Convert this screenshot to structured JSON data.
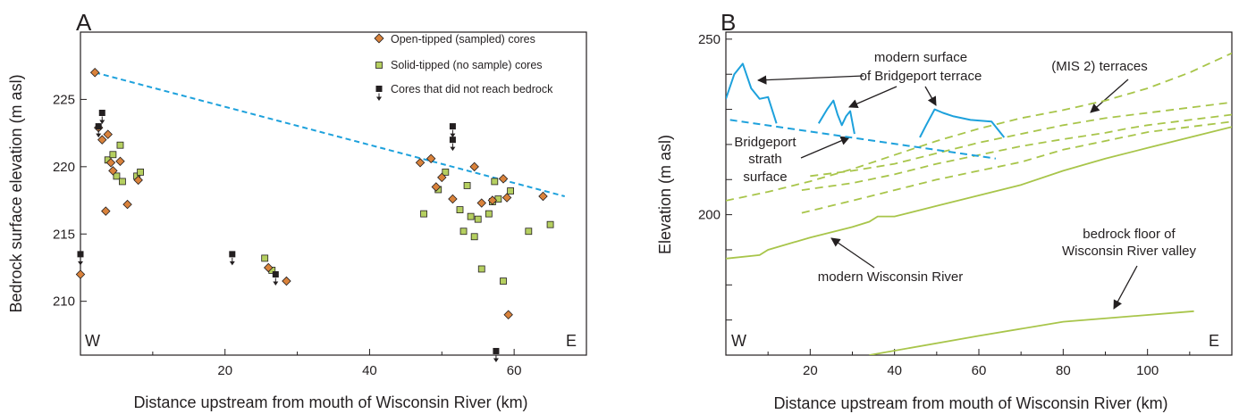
{
  "colors": {
    "open_tipped": "#d9823b",
    "solid_tipped": "#b5cf60",
    "no_bedrock": "#231f20",
    "trend_line": "#1da1dc",
    "terrace": "#a8c54a",
    "axis": "#231f20"
  },
  "chart_data": [
    {
      "panel": "A",
      "type": "scatter",
      "xlabel": "Distance upstream from mouth of Wisconsin River (km)",
      "ylabel": "Bedrock surface elevation (m asl)",
      "xlim": [
        0,
        70
      ],
      "ylim": [
        206,
        230
      ],
      "xticks": [
        20,
        40,
        60
      ],
      "yticks": [
        210,
        215,
        220,
        225
      ],
      "corner_labels": [
        "W",
        "E"
      ],
      "legend_position": "top-right",
      "trend_line": {
        "x": [
          2,
          67
        ],
        "y": [
          227,
          217.8
        ]
      },
      "series": [
        {
          "name": "Open-tipped (sampled) cores",
          "marker": "diamond",
          "points": [
            [
              0,
              212
            ],
            [
              2,
              227
            ],
            [
              2.5,
              222.9
            ],
            [
              3,
              222
            ],
            [
              3.5,
              216.7
            ],
            [
              3.8,
              222.4
            ],
            [
              4.2,
              220.3
            ],
            [
              4.5,
              219.7
            ],
            [
              5.5,
              220.4
            ],
            [
              6.5,
              217.2
            ],
            [
              8,
              219
            ],
            [
              26,
              212.5
            ],
            [
              28.5,
              211.5
            ],
            [
              47,
              220.3
            ],
            [
              48.5,
              220.6
            ],
            [
              49.2,
              218.5
            ],
            [
              50,
              219.2
            ],
            [
              51.5,
              217.6
            ],
            [
              54.5,
              220
            ],
            [
              55.5,
              217.3
            ],
            [
              57,
              217.5
            ],
            [
              58.5,
              219.1
            ],
            [
              59,
              217.7
            ],
            [
              59.2,
              209
            ],
            [
              64,
              217.8
            ]
          ]
        },
        {
          "name": "Solid-tipped (no sample) cores",
          "marker": "square",
          "points": [
            [
              3.8,
              220.5
            ],
            [
              4.5,
              220.9
            ],
            [
              5,
              219.3
            ],
            [
              5.5,
              221.6
            ],
            [
              5.8,
              218.9
            ],
            [
              7.8,
              219.3
            ],
            [
              8.3,
              219.6
            ],
            [
              25.5,
              213.2
            ],
            [
              26.5,
              212.3
            ],
            [
              47.5,
              216.5
            ],
            [
              49.5,
              218.3
            ],
            [
              50.5,
              219.6
            ],
            [
              52.5,
              216.8
            ],
            [
              53,
              215.2
            ],
            [
              53.5,
              218.6
            ],
            [
              54,
              216.3
            ],
            [
              54.5,
              214.8
            ],
            [
              55,
              216.1
            ],
            [
              55.5,
              212.4
            ],
            [
              56.5,
              216.5
            ],
            [
              57,
              217.4
            ],
            [
              57.3,
              218.9
            ],
            [
              57.8,
              217.6
            ],
            [
              58.5,
              211.5
            ],
            [
              59.5,
              218.2
            ],
            [
              62,
              215.2
            ],
            [
              65,
              215.7
            ]
          ]
        },
        {
          "name": "Cores that did not reach bedrock",
          "marker": "square-arrow",
          "points": [
            [
              0,
              213.5
            ],
            [
              2.5,
              223
            ],
            [
              3,
              224
            ],
            [
              21,
              213.5
            ],
            [
              27,
              212
            ],
            [
              51.5,
              223
            ],
            [
              51.5,
              222
            ],
            [
              57.5,
              206.3
            ]
          ]
        }
      ]
    },
    {
      "panel": "B",
      "type": "line",
      "xlabel": "Distance upstream from mouth of Wisconsin River (km)",
      "ylabel": "Elevation (m asl)",
      "xlim": [
        0,
        120
      ],
      "ylim": [
        160,
        252
      ],
      "xticks": [
        20,
        40,
        60,
        80,
        100
      ],
      "yticks_labeled": [
        200,
        250
      ],
      "yticks_minor": [
        170,
        180,
        190,
        210,
        220,
        230,
        240
      ],
      "corner_labels": [
        "W",
        "E"
      ],
      "series": [
        {
          "role": "modern Wisconsin River",
          "style": "solid",
          "x": [
            0,
            8,
            10,
            20,
            30,
            34,
            36,
            38,
            40,
            50,
            60,
            70,
            80,
            90,
            100,
            110,
            120
          ],
          "y": [
            187.5,
            188.5,
            190,
            193.5,
            196.5,
            198,
            199.5,
            199.5,
            199.5,
            202.5,
            205.5,
            208.5,
            212.5,
            216,
            219,
            222,
            225
          ]
        },
        {
          "role": "bedrock floor of Wisconsin River valley",
          "style": "solid",
          "x": [
            34,
            60,
            80,
            111
          ],
          "y": [
            160,
            165.5,
            169.5,
            172.5
          ]
        },
        {
          "role": "terrace",
          "style": "dashed",
          "x": [
            0,
            10,
            20,
            30,
            40,
            50,
            60,
            70,
            80,
            90,
            100,
            110,
            120
          ],
          "y": [
            204,
            206.5,
            209.5,
            213,
            217,
            221,
            224.5,
            227.5,
            229.8,
            232.5,
            236,
            240.5,
            246
          ]
        },
        {
          "role": "terrace",
          "style": "dashed",
          "x": [
            20,
            30,
            40,
            50,
            60,
            70,
            80,
            90,
            100,
            110,
            120
          ],
          "y": [
            211,
            212.5,
            214.5,
            217.5,
            220.5,
            223,
            225.5,
            227.5,
            229,
            230.5,
            232
          ]
        },
        {
          "role": "terrace",
          "style": "dashed",
          "x": [
            18,
            30,
            40,
            50,
            60,
            70,
            80,
            90,
            95,
            100,
            110,
            120
          ],
          "y": [
            207,
            209,
            211.5,
            214.5,
            217,
            219.5,
            221.5,
            223.3,
            224.5,
            225.5,
            227,
            228.5
          ]
        },
        {
          "role": "terrace",
          "style": "dashed",
          "x": [
            18,
            30,
            40,
            50,
            60,
            70,
            80,
            90,
            100,
            110,
            120
          ],
          "y": [
            200.5,
            204,
            207,
            210,
            212.5,
            215,
            218.5,
            221,
            223.5,
            225,
            226.5
          ]
        },
        {
          "role": "Bridgeport strath surface",
          "style": "dashed",
          "x": [
            1,
            64
          ],
          "y": [
            227,
            216
          ]
        }
      ],
      "terrace_profiles": [
        [
          [
            0,
            233
          ],
          [
            2,
            240
          ],
          [
            4,
            243
          ],
          [
            6,
            236
          ],
          [
            8,
            233
          ],
          [
            10,
            233.5
          ],
          [
            12,
            226
          ]
        ],
        [
          [
            22,
            226
          ],
          [
            24,
            230
          ],
          [
            25.5,
            232.5
          ],
          [
            26.5,
            228.5
          ],
          [
            27.5,
            225.5
          ],
          [
            28.5,
            228
          ],
          [
            29.5,
            229.5
          ],
          [
            30.5,
            223
          ]
        ],
        [
          [
            46,
            222
          ],
          [
            47.5,
            225.5
          ],
          [
            49.5,
            230
          ],
          [
            51.5,
            229
          ],
          [
            54,
            228
          ],
          [
            58,
            227
          ],
          [
            63,
            226.5
          ],
          [
            66,
            222
          ]
        ]
      ],
      "annotations": [
        {
          "lines": [
            "modern surface",
            "of Bridgeport terrace"
          ]
        },
        {
          "lines": [
            "(MIS 2) terraces"
          ]
        },
        {
          "lines": [
            "Bridgeport",
            "strath",
            "surface"
          ]
        },
        {
          "lines": [
            "modern Wisconsin River"
          ]
        },
        {
          "lines": [
            "bedrock floor of",
            "Wisconsin River valley"
          ]
        }
      ]
    }
  ]
}
